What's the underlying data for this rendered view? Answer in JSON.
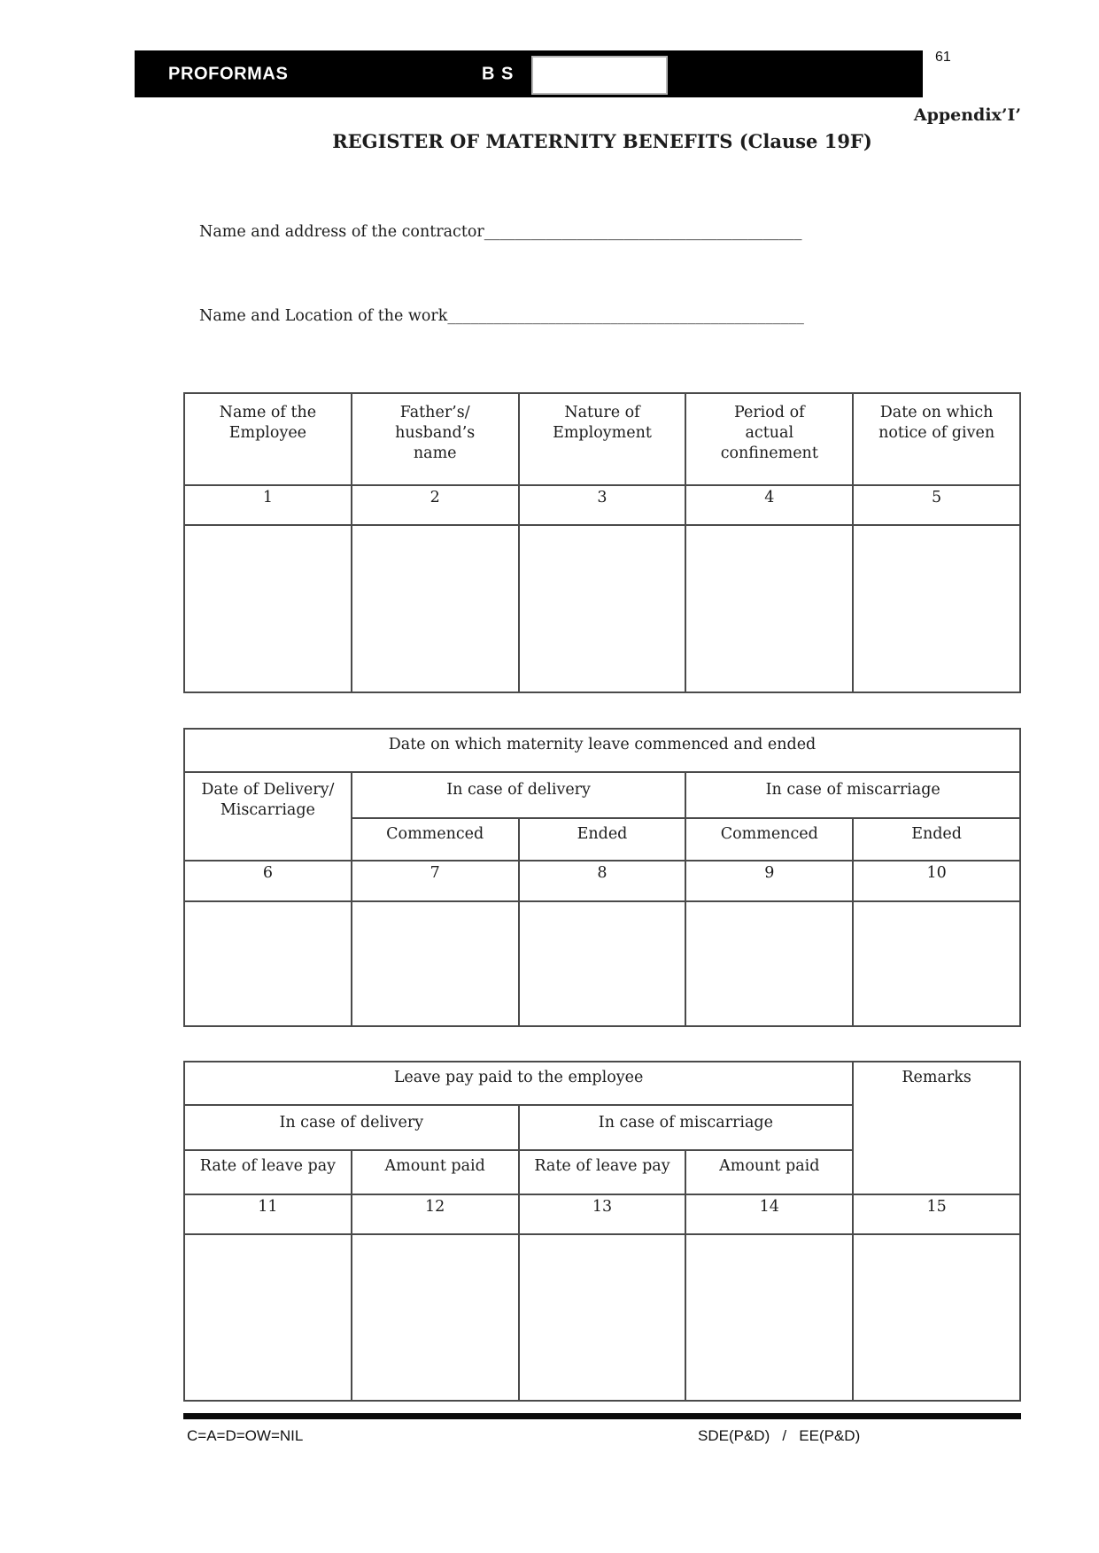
{
  "page": {
    "number": "61",
    "appendix": "Appendix’I’",
    "title": "REGISTER OF MATERNITY BENEFITS (Clause 19F)"
  },
  "header": {
    "left_label": "PROFORMAS",
    "center_label": "B S"
  },
  "fields": {
    "contractor": {
      "label": "Name and address of the contractor",
      "blank": "_________________________________________"
    },
    "work": {
      "label": "Name and Location of the work",
      "blank": "______________________________________________"
    }
  },
  "table1": {
    "headers": [
      "Name of the\nEmployee",
      "Father’s/\nhusband’s\nname",
      "Nature of\nEmployment",
      "Period of\nactual\nconfinement",
      "Date on which\nnotice of given"
    ],
    "numbers": [
      "1",
      "2",
      "3",
      "4",
      "5"
    ]
  },
  "table2": {
    "span_header": "Date on which maternity leave commenced and ended",
    "col1_header": "Date of Delivery/\nMiscarriage",
    "group_headers": [
      "In case of delivery",
      "In case of miscarriage"
    ],
    "sub_headers": [
      "Commenced",
      "Ended",
      "Commenced",
      "Ended"
    ],
    "numbers": [
      "6",
      "7",
      "8",
      "9",
      "10"
    ]
  },
  "table3": {
    "span_header": "Leave pay paid to the employee",
    "remarks_header": "Remarks",
    "group_headers": [
      "In case of delivery",
      "In case of miscarriage"
    ],
    "sub_headers": [
      "Rate of leave pay",
      "Amount paid",
      "Rate of leave pay",
      "Amount paid"
    ],
    "numbers": [
      "11",
      "12",
      "13",
      "14",
      "15"
    ]
  },
  "footer": {
    "left": "C=A=D=OW=NIL",
    "right": "SDE(P&D)   /   EE(P&D)"
  },
  "colors": {
    "header_bar": "#000000",
    "table_border": "#4a4a4a",
    "text": "#1c1c1c"
  }
}
